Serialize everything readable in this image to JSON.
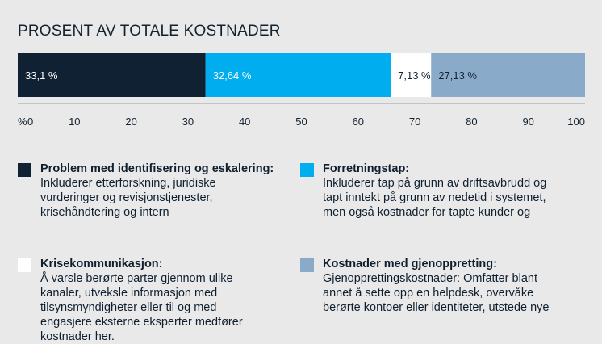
{
  "chart_data": {
    "type": "bar",
    "orientation": "horizontal-stacked-100",
    "title": "PROSENT AV TOTALE KOSTNADER",
    "x_axis_prefix": "%",
    "xlim": [
      0,
      100
    ],
    "ticks": [
      0,
      10,
      20,
      30,
      40,
      50,
      60,
      70,
      80,
      90,
      100
    ],
    "grid": false,
    "segments": [
      {
        "value": 33.1,
        "label": "33,1 %",
        "color": "#0f2133",
        "label_color": "#ffffff"
      },
      {
        "value": 32.64,
        "label": "32,64 %",
        "color": "#00aeef",
        "label_color": "#ffffff"
      },
      {
        "value": 7.13,
        "label": "7,13 %",
        "color": "#ffffff",
        "label_color": "#0f2133"
      },
      {
        "value": 27.13,
        "label": "27,13 %",
        "color": "#8aaac9",
        "label_color": "#0f2133"
      }
    ]
  },
  "legend": [
    {
      "color": "#0f2133",
      "heading": "Problem med identifisering og eskalering:",
      "lines": [
        "Inkluderer etterforskning, juridiske",
        "vurderinger og revisjonstjenester,",
        "krisehåndtering og intern"
      ]
    },
    {
      "color": "#00aeef",
      "heading": "Forretningstap:",
      "lines": [
        "Inkluderer tap på grunn av driftsavbrudd og",
        "tapt inntekt på grunn av nedetid i systemet,",
        "men også kostnader for tapte kunder og"
      ]
    },
    {
      "color": "#ffffff",
      "heading": "Krisekommunikasjon:",
      "lines": [
        "Å varsle berørte parter gjennom ulike",
        "kanaler, utveksle informasjon med",
        "tilsynsmyndigheter eller til og med",
        "engasjere eksterne eksperter medfører",
        "kostnader her."
      ]
    },
    {
      "color": "#8aaac9",
      "heading": "Kostnader med gjenoppretting:",
      "lines": [
        "Gjenopprettingskostnader: Omfatter blant",
        "annet å sette opp en helpdesk, overvåke",
        "berørte kontoer eller identiteter, utstede nye"
      ]
    }
  ]
}
